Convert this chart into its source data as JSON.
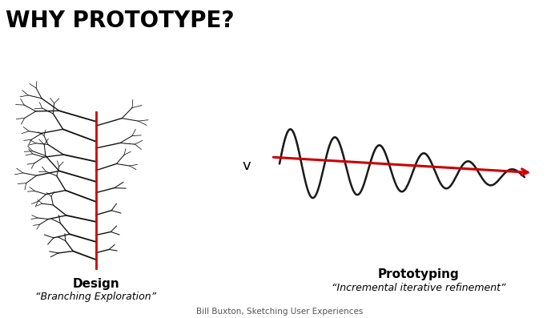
{
  "title": "WHY PROTOTYPE?",
  "title_fontsize": 20,
  "bg_color": "#ffffff",
  "label_design": "Design",
  "label_design_sub": "“Branching Exploration”",
  "label_proto": "Prototyping",
  "label_proto_sub": "“Incremental iterative refinement”",
  "label_v": "v",
  "citation": "Bill Buxton, Sketching User Experiences",
  "tree_color": "#111111",
  "red_color": "#cc0000",
  "spiral_color": "#1a1a1a"
}
